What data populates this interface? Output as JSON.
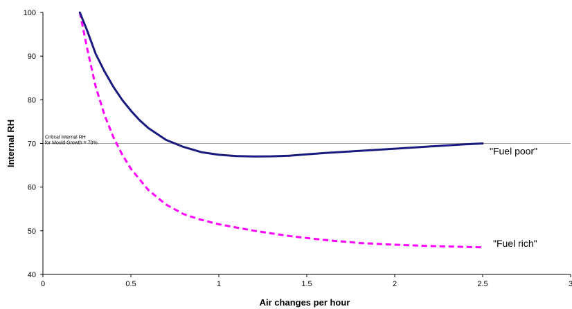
{
  "chart_data": {
    "type": "line",
    "title": "",
    "xlabel": "Air changes per hour",
    "ylabel": "Internal RH",
    "xlim": [
      0,
      3
    ],
    "ylim": [
      40,
      100
    ],
    "x_ticks": [
      0,
      0.5,
      1,
      1.5,
      2,
      2.5,
      3
    ],
    "x_tick_labels": [
      "0",
      "0.5",
      "1",
      "1.5",
      "2",
      "2.5",
      "3"
    ],
    "y_ticks": [
      40,
      50,
      60,
      70,
      80,
      90,
      100
    ],
    "y_tick_labels": [
      "40",
      "50",
      "60",
      "70",
      "80",
      "90",
      "100"
    ],
    "grid": false,
    "legend": "none",
    "reference_line": {
      "y": 70,
      "label_lines": [
        "Critical Internal RH",
        "for Mould Growth = 70%"
      ],
      "color": "#808080"
    },
    "series": [
      {
        "name": "\"Fuel poor\"",
        "color": "#1a1a7e",
        "style": "solid",
        "x": [
          0.21,
          0.25,
          0.3,
          0.35,
          0.4,
          0.45,
          0.5,
          0.55,
          0.6,
          0.7,
          0.8,
          0.9,
          1.0,
          1.1,
          1.2,
          1.3,
          1.4,
          1.5,
          1.6,
          1.8,
          2.0,
          2.2,
          2.4,
          2.5
        ],
        "y": [
          100,
          96,
          90.5,
          86.5,
          83,
          80,
          77.5,
          75.3,
          73.5,
          70.8,
          69.2,
          68,
          67.4,
          67.1,
          67,
          67.05,
          67.2,
          67.5,
          67.8,
          68.3,
          68.8,
          69.3,
          69.8,
          70
        ]
      },
      {
        "name": "\"Fuel rich\"",
        "color": "#ff00ff",
        "style": "dashed",
        "x": [
          0.21,
          0.25,
          0.3,
          0.35,
          0.4,
          0.45,
          0.5,
          0.6,
          0.7,
          0.8,
          0.9,
          1.0,
          1.2,
          1.4,
          1.6,
          1.8,
          2.0,
          2.2,
          2.4,
          2.5
        ],
        "y": [
          100,
          92,
          83,
          76.5,
          71.5,
          67.5,
          64.2,
          59.3,
          56,
          53.8,
          52.5,
          51.5,
          50,
          48.8,
          47.9,
          47.2,
          46.8,
          46.5,
          46.3,
          46.2
        ]
      }
    ]
  }
}
